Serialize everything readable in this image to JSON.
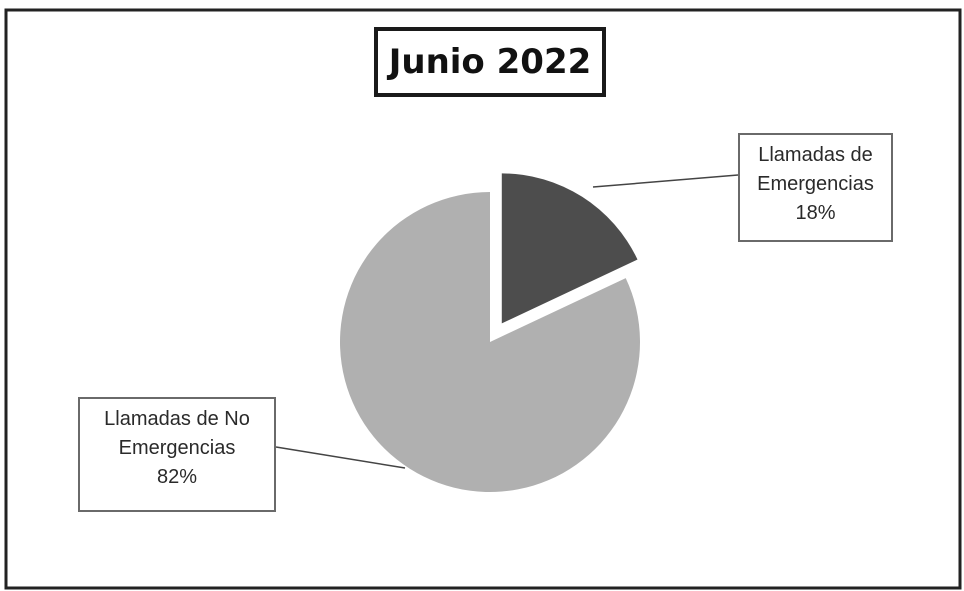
{
  "chart_data": {
    "type": "pie",
    "title": "Junio 2022",
    "slices": [
      {
        "label_line1": "Llamadas de",
        "label_line2": "Emergencias",
        "label": "Llamadas de Emergencias",
        "value": 18,
        "value_text": "18%",
        "color": "#4d4d4d",
        "exploded": true
      },
      {
        "label_line1": "Llamadas de No",
        "label_line2": "Emergencias",
        "label": "Llamadas de No Emergencias",
        "value": 82,
        "value_text": "82%",
        "color": "#b0b0b0",
        "exploded": false
      }
    ],
    "legend": "none"
  }
}
